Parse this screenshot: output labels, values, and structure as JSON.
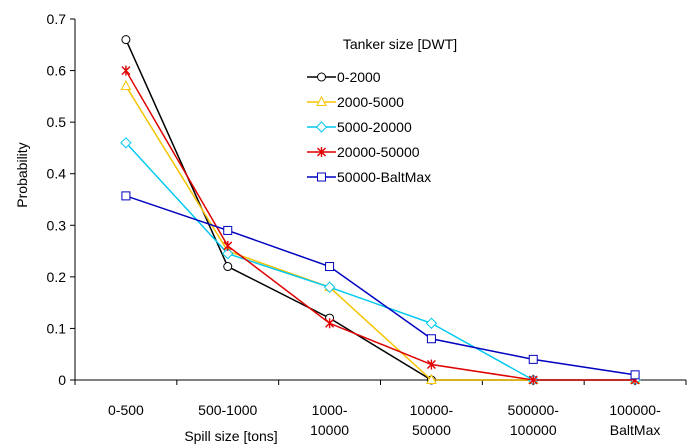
{
  "chart_data": {
    "type": "line",
    "title": "",
    "xlabel": "Spill size [tons]",
    "ylabel": "Probability",
    "ylim": [
      0,
      0.7
    ],
    "yticks": [
      "0",
      "0.1",
      "0.2",
      "0.3",
      "0.4",
      "0.5",
      "0.6",
      "0.7"
    ],
    "categories": [
      [
        "0-500"
      ],
      [
        "500-1000"
      ],
      [
        "1000-",
        "10000"
      ],
      [
        "10000-",
        "50000"
      ],
      [
        "500000-",
        "100000"
      ],
      [
        "100000-",
        "BaltMax"
      ]
    ],
    "grid": false,
    "legend": {
      "title": "Tanker size [DWT]",
      "placement": "top-right"
    },
    "series": [
      {
        "name": "0-2000",
        "color": "#000000",
        "marker": "circle",
        "values": [
          0.66,
          0.22,
          0.12,
          0.0,
          0.0,
          0.0
        ]
      },
      {
        "name": "2000-5000",
        "color": "#f5c400",
        "marker": "triangle",
        "values": [
          0.57,
          0.25,
          0.18,
          0.0,
          0.0,
          0.0
        ]
      },
      {
        "name": "5000-20000",
        "color": "#00c8f0",
        "marker": "diamond",
        "values": [
          0.46,
          0.245,
          0.18,
          0.11,
          0.0,
          0.0
        ]
      },
      {
        "name": "20000-50000",
        "color": "#e00000",
        "marker": "star",
        "values": [
          0.6,
          0.26,
          0.11,
          0.03,
          0.0,
          0.0
        ]
      },
      {
        "name": "50000-BaltMax",
        "color": "#0000c0",
        "marker": "square",
        "values": [
          0.357,
          0.29,
          0.22,
          0.08,
          0.04,
          0.01
        ]
      }
    ]
  }
}
